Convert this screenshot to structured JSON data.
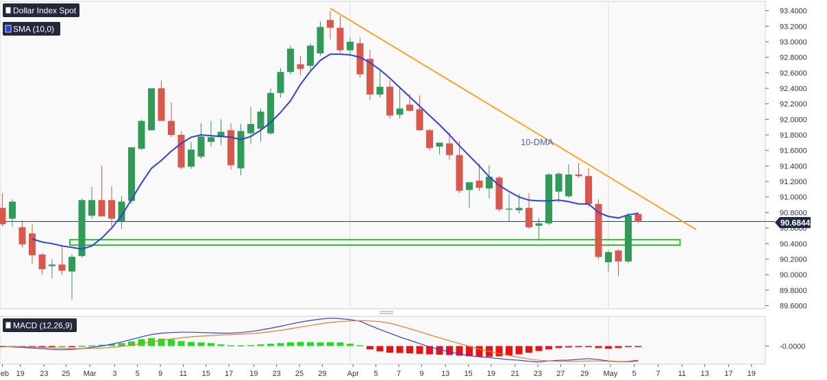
{
  "chart_data": [
    {
      "type": "candlestick",
      "title": "Dollar Index Spot",
      "indicator_label": "SMA (10,0)",
      "annotation_ma": "10-DMA",
      "last_price_label": "90.6844",
      "y_ticks": [
        "93.4000",
        "93.2000",
        "93.0000",
        "92.8000",
        "92.6000",
        "92.4000",
        "92.2000",
        "92.0000",
        "91.8000",
        "91.6000",
        "91.4000",
        "91.2000",
        "91.0000",
        "90.8000",
        "90.6000",
        "90.4000",
        "90.2000",
        "90.0000",
        "89.8000",
        "89.6000"
      ],
      "ylim": [
        89.56,
        93.52
      ],
      "x_tick_labels": [
        "Feb",
        "19",
        "23",
        "25",
        "Mar",
        "3",
        "5",
        "9",
        "11",
        "15",
        "17",
        "19",
        "23",
        "25",
        "29",
        "Apr",
        "5",
        "7",
        "9",
        "13",
        "15",
        "19",
        "21",
        "23",
        "27",
        "29",
        "May",
        "5",
        "7",
        "11",
        "13",
        "17",
        "19"
      ],
      "candles": [
        {
          "o": 90.86,
          "h": 91.05,
          "l": 90.62,
          "c": 90.65
        },
        {
          "o": 90.72,
          "h": 90.97,
          "l": 90.62,
          "c": 90.94
        },
        {
          "o": 90.61,
          "h": 90.7,
          "l": 90.35,
          "c": 90.39
        },
        {
          "o": 90.53,
          "h": 90.65,
          "l": 90.14,
          "c": 90.25
        },
        {
          "o": 90.26,
          "h": 90.28,
          "l": 90.0,
          "c": 90.07
        },
        {
          "o": 90.11,
          "h": 90.2,
          "l": 89.95,
          "c": 90.13
        },
        {
          "o": 90.13,
          "h": 90.38,
          "l": 90.0,
          "c": 90.05
        },
        {
          "o": 90.04,
          "h": 90.26,
          "l": 89.68,
          "c": 90.23
        },
        {
          "o": 90.24,
          "h": 90.98,
          "l": 90.22,
          "c": 90.96
        },
        {
          "o": 90.76,
          "h": 91.13,
          "l": 90.72,
          "c": 90.96
        },
        {
          "o": 90.96,
          "h": 91.4,
          "l": 90.76,
          "c": 90.75
        },
        {
          "o": 90.96,
          "h": 91.14,
          "l": 90.62,
          "c": 90.72
        },
        {
          "o": 90.69,
          "h": 91.01,
          "l": 90.59,
          "c": 90.94
        },
        {
          "o": 90.95,
          "h": 91.64,
          "l": 90.91,
          "c": 91.64
        },
        {
          "o": 91.62,
          "h": 92.0,
          "l": 91.61,
          "c": 91.98
        },
        {
          "o": 91.86,
          "h": 92.4,
          "l": 91.86,
          "c": 92.4
        },
        {
          "o": 92.4,
          "h": 92.5,
          "l": 91.99,
          "c": 91.98
        },
        {
          "o": 91.98,
          "h": 92.22,
          "l": 91.77,
          "c": 91.8
        },
        {
          "o": 91.8,
          "h": 91.85,
          "l": 91.36,
          "c": 91.38
        },
        {
          "o": 91.39,
          "h": 91.71,
          "l": 91.36,
          "c": 91.61
        },
        {
          "o": 91.52,
          "h": 91.95,
          "l": 91.49,
          "c": 91.78
        },
        {
          "o": 91.71,
          "h": 91.98,
          "l": 91.65,
          "c": 91.77
        },
        {
          "o": 91.77,
          "h": 92.0,
          "l": 91.67,
          "c": 91.84
        },
        {
          "o": 91.86,
          "h": 91.95,
          "l": 91.35,
          "c": 91.41
        },
        {
          "o": 91.37,
          "h": 91.94,
          "l": 91.28,
          "c": 91.85
        },
        {
          "o": 91.82,
          "h": 92.16,
          "l": 91.68,
          "c": 91.94
        },
        {
          "o": 91.88,
          "h": 92.14,
          "l": 91.71,
          "c": 92.1
        },
        {
          "o": 91.82,
          "h": 92.4,
          "l": 91.8,
          "c": 92.34
        },
        {
          "o": 92.34,
          "h": 92.66,
          "l": 92.28,
          "c": 92.61
        },
        {
          "o": 92.61,
          "h": 92.95,
          "l": 92.58,
          "c": 92.91
        },
        {
          "o": 92.71,
          "h": 92.82,
          "l": 92.57,
          "c": 92.65
        },
        {
          "o": 92.69,
          "h": 92.98,
          "l": 92.64,
          "c": 92.95
        },
        {
          "o": 92.85,
          "h": 93.26,
          "l": 92.82,
          "c": 93.19
        },
        {
          "o": 93.28,
          "h": 93.4,
          "l": 93.03,
          "c": 93.18
        },
        {
          "o": 93.18,
          "h": 93.33,
          "l": 92.86,
          "c": 92.89
        },
        {
          "o": 92.89,
          "h": 93.06,
          "l": 92.82,
          "c": 93.0
        },
        {
          "o": 92.98,
          "h": 93.05,
          "l": 92.54,
          "c": 92.58
        },
        {
          "o": 92.78,
          "h": 92.9,
          "l": 92.25,
          "c": 92.32
        },
        {
          "o": 92.32,
          "h": 92.63,
          "l": 92.28,
          "c": 92.42
        },
        {
          "o": 92.42,
          "h": 92.5,
          "l": 92.01,
          "c": 92.05
        },
        {
          "o": 92.06,
          "h": 92.41,
          "l": 92.01,
          "c": 92.14
        },
        {
          "o": 92.19,
          "h": 92.33,
          "l": 92.1,
          "c": 92.11
        },
        {
          "o": 92.13,
          "h": 92.31,
          "l": 91.85,
          "c": 91.86
        },
        {
          "o": 91.86,
          "h": 91.88,
          "l": 91.6,
          "c": 91.63
        },
        {
          "o": 91.65,
          "h": 91.7,
          "l": 91.55,
          "c": 91.7
        },
        {
          "o": 91.69,
          "h": 91.83,
          "l": 91.48,
          "c": 91.54
        },
        {
          "o": 91.54,
          "h": 91.72,
          "l": 91.05,
          "c": 91.08
        },
        {
          "o": 91.09,
          "h": 91.18,
          "l": 90.86,
          "c": 91.19
        },
        {
          "o": 91.21,
          "h": 91.43,
          "l": 91.08,
          "c": 91.12
        },
        {
          "o": 91.11,
          "h": 91.41,
          "l": 90.98,
          "c": 91.26
        },
        {
          "o": 91.25,
          "h": 91.27,
          "l": 90.81,
          "c": 90.84
        },
        {
          "o": 90.85,
          "h": 91.04,
          "l": 90.68,
          "c": 90.85
        },
        {
          "o": 90.83,
          "h": 91.04,
          "l": 90.79,
          "c": 90.86
        },
        {
          "o": 90.86,
          "h": 91.05,
          "l": 90.59,
          "c": 90.61
        },
        {
          "o": 90.63,
          "h": 90.73,
          "l": 90.44,
          "c": 90.66
        },
        {
          "o": 90.66,
          "h": 91.31,
          "l": 90.64,
          "c": 91.29
        },
        {
          "o": 91.07,
          "h": 91.32,
          "l": 90.93,
          "c": 91.3
        },
        {
          "o": 91.01,
          "h": 91.42,
          "l": 90.99,
          "c": 91.29
        },
        {
          "o": 91.29,
          "h": 91.44,
          "l": 91.25,
          "c": 91.27
        },
        {
          "o": 91.27,
          "h": 91.37,
          "l": 90.87,
          "c": 90.91
        },
        {
          "o": 90.91,
          "h": 90.97,
          "l": 90.2,
          "c": 90.23
        },
        {
          "o": 90.16,
          "h": 90.31,
          "l": 90.04,
          "c": 90.29
        },
        {
          "o": 90.31,
          "h": 90.33,
          "l": 89.98,
          "c": 90.17
        },
        {
          "o": 90.17,
          "h": 90.8,
          "l": 90.15,
          "c": 90.76
        },
        {
          "o": 90.78,
          "h": 90.8,
          "l": 90.66,
          "c": 90.68
        }
      ],
      "sma10": [
        90.46,
        90.42,
        90.4,
        90.37,
        90.35,
        90.33,
        90.37,
        90.47,
        90.6,
        90.76,
        90.97,
        91.18,
        91.37,
        91.47,
        91.59,
        91.69,
        91.77,
        91.8,
        91.79,
        91.78,
        91.77,
        91.74,
        91.78,
        91.86,
        91.96,
        92.09,
        92.24,
        92.45,
        92.62,
        92.76,
        92.84,
        92.84,
        92.83,
        92.8,
        92.73,
        92.64,
        92.53,
        92.41,
        92.29,
        92.17,
        92.05,
        91.93,
        91.8,
        91.66,
        91.53,
        91.4,
        91.26,
        91.15,
        91.07,
        91.0,
        90.96,
        90.95,
        90.95,
        90.96,
        90.94,
        90.91,
        90.91,
        90.8,
        90.75,
        90.73,
        90.77,
        90.79
      ],
      "trendline": {
        "from": {
          "i": 33,
          "v": 93.43
        },
        "to": {
          "i": 69,
          "v": 90.58
        }
      },
      "support_zone": {
        "from_i": 7,
        "to_i": 68,
        "y_top": 90.45,
        "y_bottom": 90.38
      }
    },
    {
      "type": "macd",
      "title": "MACD (12,26,9)",
      "y_tick_label": "-0.0000",
      "ylim": [
        -1.1,
        1.8
      ],
      "zero": 0,
      "hist": [
        -0.03,
        -0.03,
        -0.02,
        -0.02,
        -0.01,
        -0.01,
        0.0,
        -0.02,
        0.02,
        0.04,
        0.08,
        0.12,
        0.18,
        0.28,
        0.42,
        0.48,
        0.45,
        0.4,
        0.3,
        0.25,
        0.22,
        0.18,
        0.1,
        0.05,
        0.04,
        0.06,
        0.1,
        0.14,
        0.18,
        0.23,
        0.25,
        0.24,
        0.22,
        0.24,
        0.22,
        0.14,
        0.05,
        -0.2,
        -0.32,
        -0.4,
        -0.42,
        -0.44,
        -0.47,
        -0.5,
        -0.52,
        -0.54,
        -0.58,
        -0.62,
        -0.64,
        -0.65,
        -0.62,
        -0.57,
        -0.5,
        -0.4,
        -0.3,
        -0.2,
        -0.12,
        -0.08,
        -0.05,
        -0.04,
        -0.12,
        -0.16,
        -0.12,
        -0.06,
        -0.04
      ],
      "macd": [
        -0.01,
        -0.05,
        -0.08,
        -0.12,
        -0.16,
        -0.2,
        -0.22,
        -0.2,
        -0.15,
        -0.08,
        0.0,
        0.12,
        0.25,
        0.4,
        0.56,
        0.7,
        0.78,
        0.82,
        0.84,
        0.84,
        0.82,
        0.8,
        0.78,
        0.78,
        0.82,
        0.88,
        0.97,
        1.08,
        1.2,
        1.33,
        1.45,
        1.55,
        1.63,
        1.69,
        1.66,
        1.6,
        1.5,
        1.25,
        1.0,
        0.78,
        0.55,
        0.35,
        0.15,
        -0.05,
        -0.2,
        -0.35,
        -0.48,
        -0.58,
        -0.65,
        -0.7,
        -0.76,
        -0.82,
        -0.86,
        -0.92,
        -0.96,
        -0.9,
        -0.86,
        -0.85,
        -0.8,
        -0.76,
        -0.82,
        -0.9,
        -0.94,
        -0.93,
        -0.86
      ],
      "signal": [
        -0.02,
        -0.03,
        -0.04,
        -0.06,
        -0.08,
        -0.11,
        -0.13,
        -0.15,
        -0.15,
        -0.14,
        -0.12,
        -0.08,
        -0.02,
        0.05,
        0.15,
        0.25,
        0.35,
        0.43,
        0.5,
        0.56,
        0.6,
        0.64,
        0.67,
        0.69,
        0.72,
        0.75,
        0.8,
        0.87,
        0.95,
        1.05,
        1.15,
        1.25,
        1.35,
        1.43,
        1.48,
        1.52,
        1.54,
        1.52,
        1.48,
        1.38,
        1.22,
        1.05,
        0.87,
        0.68,
        0.5,
        0.32,
        0.15,
        -0.02,
        -0.18,
        -0.32,
        -0.45,
        -0.57,
        -0.68,
        -0.78,
        -0.86,
        -0.9,
        -0.92,
        -0.93,
        -0.92,
        -0.91,
        -0.9,
        -0.92,
        -0.94,
        -0.95,
        -0.92
      ]
    }
  ],
  "colors": {
    "bull": "#2e9b56",
    "bear": "#d9584a",
    "sma": "#2a3fe8",
    "trendline": "#f5a623",
    "zone": "#22cc22",
    "macd_line": "#2a3fe8",
    "signal_line": "#f07a1a",
    "hist_pos": "#22dd22",
    "hist_neg": "#ee1111",
    "label_bg": "#23293a",
    "price_line": "#1e3c72"
  }
}
